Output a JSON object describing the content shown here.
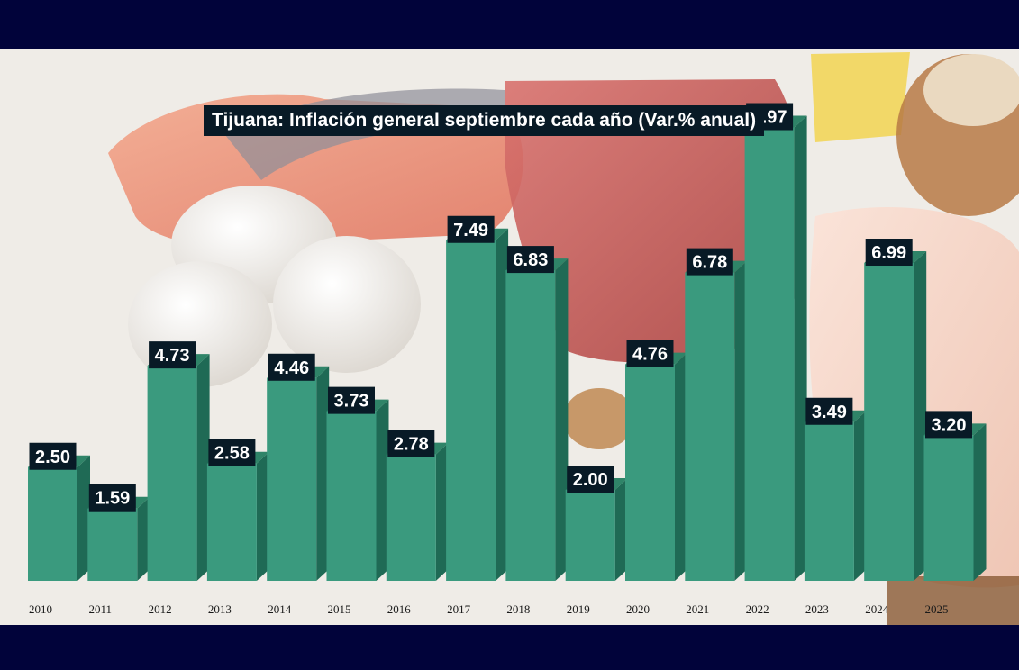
{
  "chart_data": {
    "type": "bar",
    "title": "Tijuana: Inflación general septiembre cada año (Var.% anual)",
    "xlabel": "",
    "ylabel": "",
    "categories": [
      "2010",
      "2011",
      "2012",
      "2013",
      "2014",
      "2015",
      "2016",
      "2017",
      "2018",
      "2019",
      "2020",
      "2021",
      "2022",
      "2023",
      "2024",
      "2025"
    ],
    "values": [
      2.5,
      1.59,
      4.73,
      2.58,
      4.46,
      3.73,
      2.78,
      7.49,
      6.83,
      2.0,
      4.76,
      6.78,
      9.97,
      3.49,
      6.99,
      3.2
    ],
    "value_labels": [
      "2.50",
      "1.59",
      "4.73",
      "2.58",
      "4.46",
      "3.73",
      "2.78",
      "7.49",
      "6.83",
      "2.00",
      "4.76",
      "6.78",
      "9.97",
      "3.49",
      "6.99",
      "3.20"
    ],
    "ylim": [
      0,
      10
    ],
    "grid": false,
    "legend": "none",
    "data_labels": true,
    "style": "3d-bar",
    "colors": {
      "bar_front": "#3a9a7e",
      "bar_side": "#1f6a55",
      "bar_top": "#2f8468",
      "label_background": "#081a26",
      "label_text": "#ffffff",
      "tick_text": "#1a1a1a",
      "frame": "#01033a"
    }
  }
}
